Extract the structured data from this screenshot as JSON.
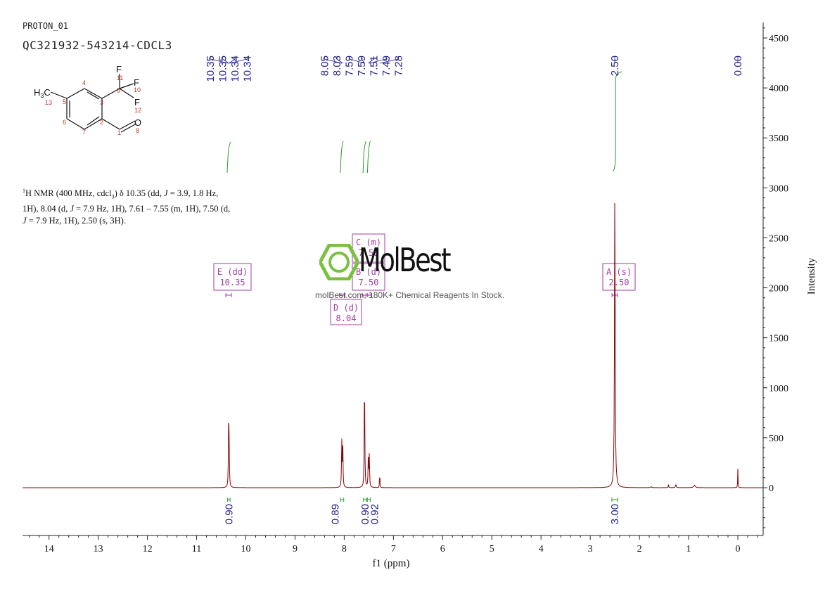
{
  "header": {
    "experiment": "PROTON_01",
    "sample": "QC321932-543214-CDCL3"
  },
  "description": {
    "line1_a": "H NMR (400 MHz, cdcl",
    "line1_sup": "1",
    "line1_sub": "3",
    "line1_b": ") δ 10.35 (dd, ",
    "j": "J",
    "line1_c": " = 3.9, 1.8 Hz,",
    "line2_a": "1H), 8.04 (d, ",
    "line2_b": " = 7.9 Hz, 1H), 7.61 – 7.55 (m, 1H), 7.50 (d,",
    "line3_b": " = 7.9 Hz, 1H), 2.50 (s, 3H)."
  },
  "watermark": {
    "brand": "MolBest",
    "caption": "molBest.com, 180K+ Chemical Reagents In Stock."
  },
  "molecule": {
    "methyl_label": "H3C",
    "atoms": [
      {
        "sym": "F",
        "num": "11"
      },
      {
        "sym": "F",
        "num": "10"
      },
      {
        "sym": "F",
        "num": "12"
      },
      {
        "sym": "O",
        "num": "8"
      }
    ],
    "numbers": [
      "13",
      "5",
      "4",
      "3",
      "9",
      "6",
      "7",
      "2",
      "1"
    ]
  },
  "chart_data": {
    "type": "line",
    "title": "",
    "xlabel": "f1 (ppm)",
    "ylabel": "Intensity",
    "xlim": [
      14.6,
      -0.45
    ],
    "ylim": [
      -480,
      4650
    ],
    "x_ticks": [
      14,
      13,
      12,
      11,
      10,
      9,
      8,
      7,
      6,
      5,
      4,
      3,
      2,
      1,
      0
    ],
    "y_ticks": [
      0,
      500,
      1000,
      1500,
      2000,
      2500,
      3000,
      3500,
      4000,
      4500
    ],
    "peaks": [
      {
        "x": 10.35,
        "y": 520,
        "w": 0.006
      },
      {
        "x": 10.34,
        "y": 500,
        "w": 0.006
      },
      {
        "x": 8.05,
        "y": 470,
        "w": 0.006
      },
      {
        "x": 8.03,
        "y": 480,
        "w": 0.006
      },
      {
        "x": 7.59,
        "y": 600,
        "w": 0.006
      },
      {
        "x": 7.585,
        "y": 560,
        "w": 0.006
      },
      {
        "x": 7.51,
        "y": 330,
        "w": 0.006
      },
      {
        "x": 7.49,
        "y": 320,
        "w": 0.006
      },
      {
        "x": 7.28,
        "y": 170,
        "w": 0.004
      },
      {
        "x": 2.5,
        "y": 2990,
        "w": 0.008
      },
      {
        "x": 2.46,
        "y": 20,
        "w": 0.004
      },
      {
        "x": 1.76,
        "y": 10,
        "w": 0.01
      },
      {
        "x": 1.41,
        "y": 35,
        "w": 0.005
      },
      {
        "x": 1.26,
        "y": 30,
        "w": 0.01
      },
      {
        "x": 0.88,
        "y": 25,
        "w": 0.02
      },
      {
        "x": 0.0,
        "y": 190,
        "w": 0.004
      }
    ],
    "peak_labels": [
      "10.35",
      "10.35",
      "10.34",
      "10.34",
      "8.05",
      "8.03",
      "7.59",
      "7.59",
      "7.51",
      "7.49",
      "7.28",
      "2.50",
      "0.00"
    ],
    "integrals": [
      {
        "from": 10.37,
        "to": 10.32,
        "value": "0.90"
      },
      {
        "from": 8.07,
        "to": 8.01,
        "value": "0.89"
      },
      {
        "from": 7.61,
        "to": 7.55,
        "value": "0.90"
      },
      {
        "from": 7.53,
        "to": 7.47,
        "value": "0.92"
      },
      {
        "from": 2.56,
        "to": 2.44,
        "value": "3.00"
      }
    ],
    "multiplets": [
      {
        "label": "E (dd)",
        "shift": "10.35",
        "x": 10.35
      },
      {
        "label": "C (m)",
        "shift": "7.58",
        "x": 7.58
      },
      {
        "label": "B (d)",
        "shift": "7.50",
        "x": 7.5
      },
      {
        "label": "D (d)",
        "shift": "8.04",
        "x": 8.04
      },
      {
        "label": "A (s)",
        "shift": "2.50",
        "x": 2.5
      }
    ],
    "colors": {
      "spectrum": "#8b0000",
      "labels": "#1f1f8f",
      "integral_curve": "#2e9a2e",
      "multiplet": "#a03ca0",
      "watermark": "#7ac142"
    }
  }
}
